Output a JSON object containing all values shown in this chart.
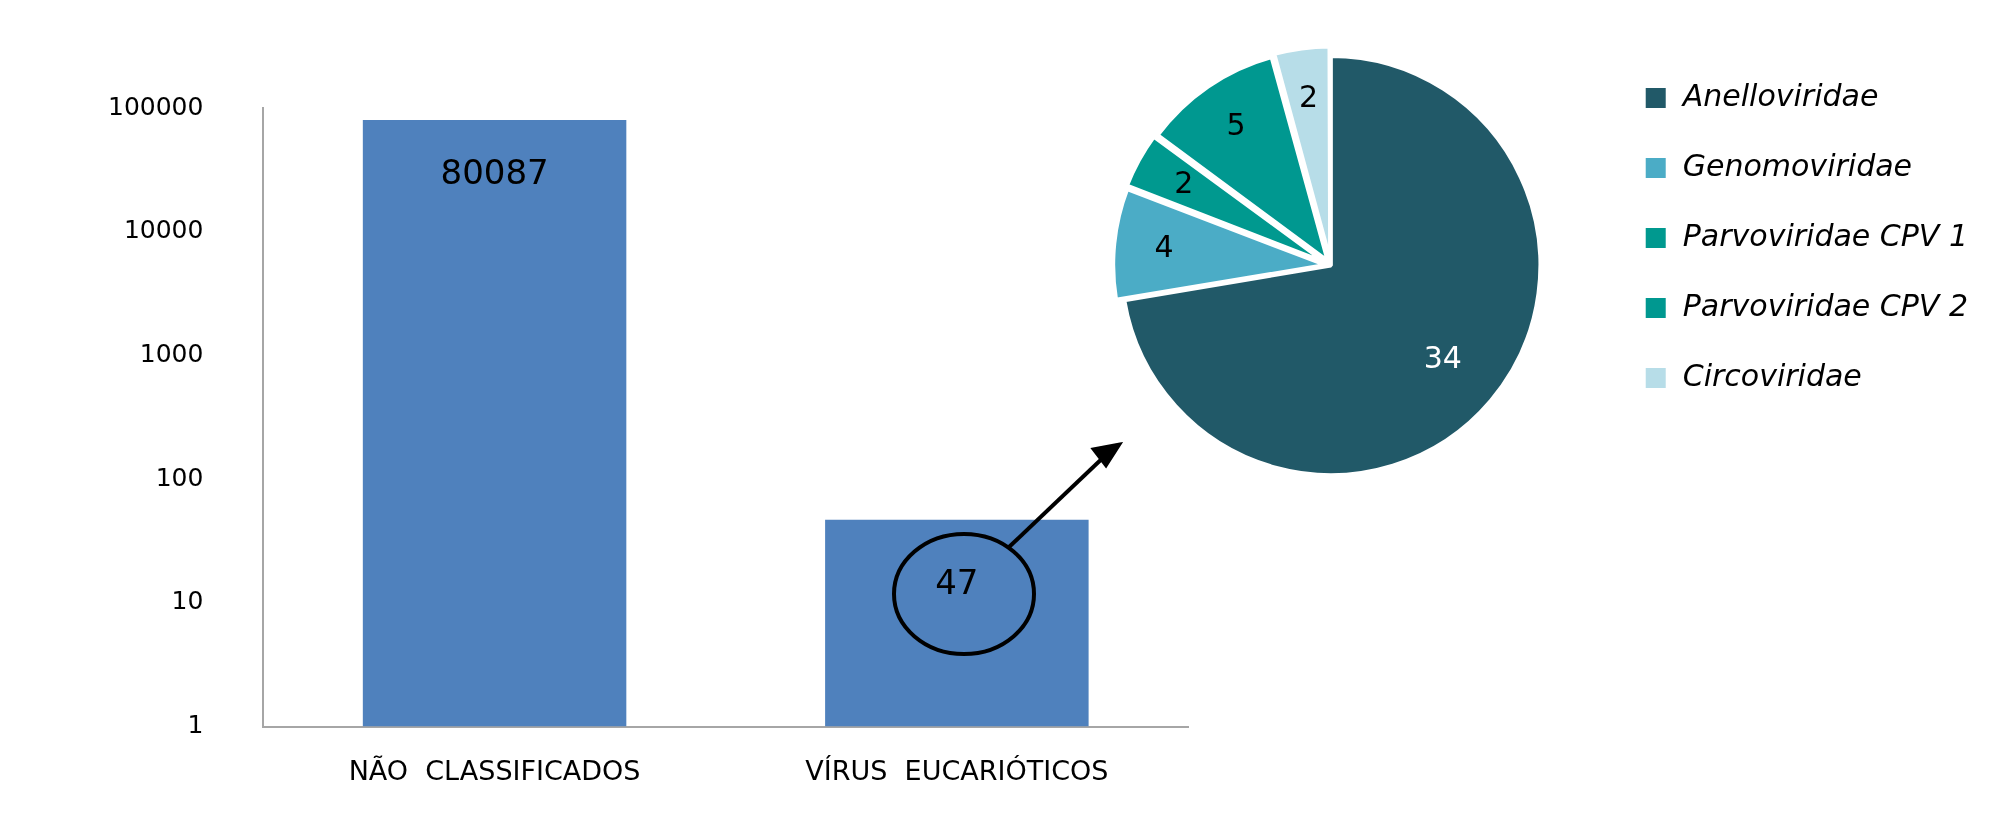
{
  "chart_data": [
    {
      "type": "bar",
      "categories": [
        "NÃO  CLASSIFICADOS",
        "VÍRUS  EUCARIÓTICOS"
      ],
      "values": [
        80087,
        47
      ],
      "color": "#4f81bd",
      "log": true,
      "ylim": [
        1,
        100000
      ],
      "yticks": [
        1,
        10,
        100,
        1000,
        10000,
        100000
      ],
      "grid": false,
      "data_labels": true
    },
    {
      "type": "pie",
      "categories": [
        "Anelloviridae",
        "Genomoviridae",
        "Parvoviridae CPV 1",
        "Parvoviridae CPV 2",
        "Circoviridae"
      ],
      "values": [
        34,
        4,
        2,
        5,
        2
      ],
      "colors": [
        "#215968",
        "#4bacc6",
        "#00998f",
        "#009890",
        "#b7dde8"
      ],
      "legend": "right",
      "data_labels": true
    }
  ]
}
